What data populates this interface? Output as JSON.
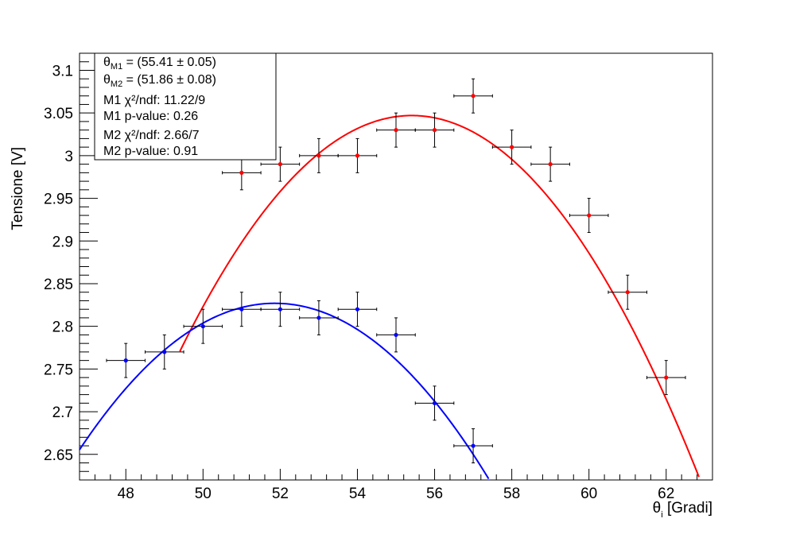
{
  "chart_data": {
    "type": "scatter",
    "xlabel": "θ",
    "xlabel_sub": "i",
    "xlabel_unit": " [Gradi]",
    "ylabel": "Tensione [V]",
    "xlim": [
      46.8,
      63.2
    ],
    "ylim": [
      2.62,
      3.12
    ],
    "x_ticks": [
      48,
      50,
      52,
      54,
      56,
      58,
      60,
      62
    ],
    "y_ticks": [
      2.65,
      2.7,
      2.75,
      2.8,
      2.85,
      2.9,
      2.95,
      3.0,
      3.05,
      3.1
    ],
    "y_tick_labels": [
      "2.65",
      "2.7",
      "2.75",
      "2.8",
      "2.85",
      "2.9",
      "2.95",
      "3",
      "3.05",
      "3.1"
    ],
    "grid": false,
    "legend_position": "top-left",
    "series": [
      {
        "color": "#ff0000",
        "marker_color": "#ff0000",
        "x": [
          51,
          52,
          53,
          54,
          55,
          56,
          57,
          58,
          59,
          60,
          61,
          62
        ],
        "y": [
          2.98,
          2.99,
          3.0,
          3.0,
          3.03,
          3.03,
          3.07,
          3.01,
          2.99,
          2.93,
          2.84,
          2.74
        ],
        "x_err": 0.5,
        "y_err": 0.02,
        "fit": {
          "type": "parabola",
          "vertex_x": 55.41,
          "vertex_y": 3.047,
          "curvature": -0.00765,
          "x_range": [
            49.4,
            63.2
          ]
        }
      },
      {
        "color": "#0000ff",
        "marker_color": "#0000ff",
        "x": [
          48,
          49,
          50,
          51,
          52,
          53,
          54,
          55,
          56,
          57
        ],
        "y": [
          2.76,
          2.77,
          2.8,
          2.82,
          2.82,
          2.81,
          2.82,
          2.79,
          2.71,
          2.66
        ],
        "x_err": 0.5,
        "y_err": 0.02,
        "fit": {
          "type": "parabola",
          "vertex_x": 51.86,
          "vertex_y": 2.827,
          "curvature": -0.0067,
          "x_range": [
            46.8,
            57.75
          ]
        }
      }
    ],
    "stats_box": {
      "line1_prefix": "θ",
      "line1_sub": "M1",
      "line1_value": " = (55.41 ± 0.05)",
      "line2_prefix": "θ",
      "line2_sub": "M2",
      "line2_value": " = (51.86 ± 0.08)",
      "line3": "M1 χ²/ndf: 11.22/9",
      "line4": "M1 p-value: 0.26",
      "line5": "M2 χ²/ndf: 2.66/7",
      "line6": "M2 p-value: 0.91"
    }
  }
}
